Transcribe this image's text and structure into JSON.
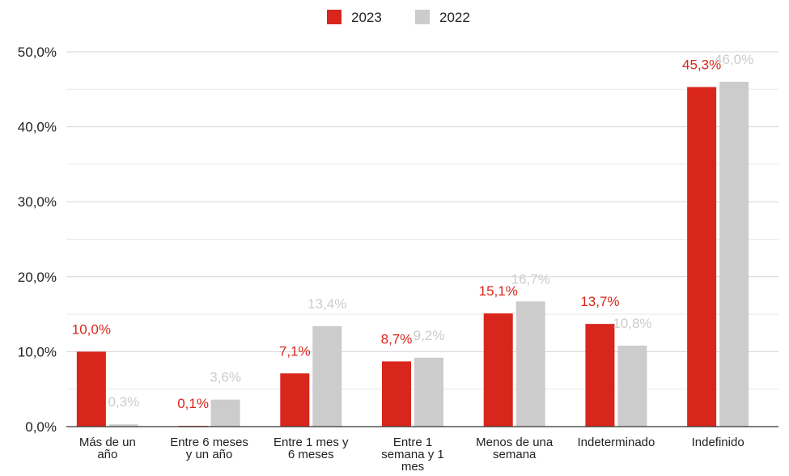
{
  "chart_data": {
    "type": "bar",
    "title": "",
    "xlabel": "",
    "ylabel": "",
    "ylim": [
      0,
      50
    ],
    "y_ticks": [
      "0,0%",
      "10,0%",
      "20,0%",
      "30,0%",
      "40,0%",
      "50,0%"
    ],
    "grid": true,
    "legend_position": "top-center",
    "categories": [
      [
        "Más de un",
        "año"
      ],
      [
        "Entre 6 meses",
        "y un año"
      ],
      [
        "Entre 1 mes y",
        "6 meses"
      ],
      [
        "Entre 1",
        "semana y 1",
        "mes"
      ],
      [
        "Menos de una",
        "semana"
      ],
      [
        "Indeterminado"
      ],
      [
        "Indefinido"
      ]
    ],
    "series": [
      {
        "name": "2023",
        "color": "#d9261c",
        "values": [
          10.0,
          0.1,
          7.1,
          8.7,
          15.1,
          13.7,
          45.3
        ],
        "labels": [
          "10,0%",
          "0,1%",
          "7,1%",
          "8,7%",
          "15,1%",
          "13,7%",
          "45,3%"
        ]
      },
      {
        "name": "2022",
        "color": "#cccccc",
        "values": [
          0.3,
          3.6,
          13.4,
          9.2,
          16.7,
          10.8,
          46.0
        ],
        "labels": [
          "0,3%",
          "3,6%",
          "13,4%",
          "9,2%",
          "16,7%",
          "10,8%",
          "46,0%"
        ]
      }
    ]
  }
}
